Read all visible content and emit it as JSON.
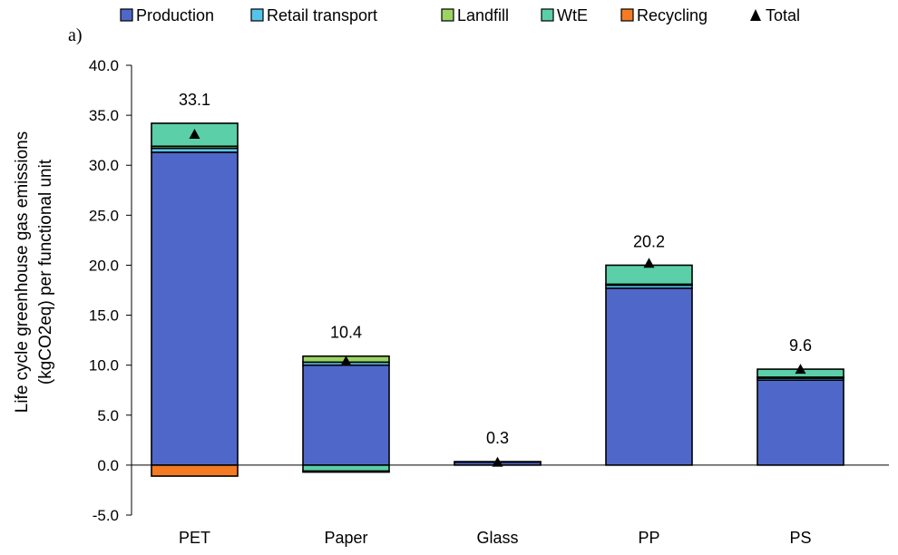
{
  "panel_label": "a)",
  "colors": {
    "production": "#4F67C9",
    "retail_transport": "#56C4EA",
    "landfill": "#9BD462",
    "wte": "#5BCFA8",
    "recycling": "#F47B24",
    "total_marker": "#000000"
  },
  "chart_data": {
    "type": "bar",
    "stacked": true,
    "title": "",
    "xlabel": "",
    "ylabel_lines": [
      "Life cycle greenhouse gas emissions",
      "(kgCO2eq) per functional unit"
    ],
    "ylim": [
      -5,
      40
    ],
    "yticks": [
      -5,
      0,
      5,
      10,
      15,
      20,
      25,
      30,
      35,
      40
    ],
    "ytick_labels": [
      "-5.0",
      "0.0",
      "5.0",
      "10.0",
      "15.0",
      "20.0",
      "25.0",
      "30.0",
      "35.0",
      "40.0"
    ],
    "categories": [
      "PET",
      "Paper",
      "Glass",
      "PP",
      "PS"
    ],
    "legend_position": "top",
    "legend": [
      "Production",
      "Retail transport",
      "Landfill",
      "WtE",
      "Recycling",
      "Total"
    ],
    "series": [
      {
        "name": "Production",
        "color_key": "production",
        "values": [
          31.3,
          10.0,
          0.3,
          17.7,
          8.5
        ]
      },
      {
        "name": "Retail transport",
        "color_key": "retail_transport",
        "values": [
          0.4,
          0.3,
          0.05,
          0.3,
          0.2
        ]
      },
      {
        "name": "Landfill",
        "color_key": "landfill",
        "values": [
          0.2,
          0.6,
          0.0,
          0.1,
          0.1
        ]
      },
      {
        "name": "WtE",
        "color_key": "wte",
        "values": [
          2.3,
          -0.6,
          0.0,
          1.9,
          0.8
        ]
      },
      {
        "name": "Recycling",
        "color_key": "recycling",
        "values": [
          -1.1,
          -0.1,
          0.0,
          0.0,
          0.0
        ]
      }
    ],
    "totals": [
      33.1,
      10.4,
      0.3,
      20.2,
      9.6
    ],
    "total_labels": [
      "33.1",
      "10.4",
      "0.3",
      "20.2",
      "9.6"
    ]
  }
}
